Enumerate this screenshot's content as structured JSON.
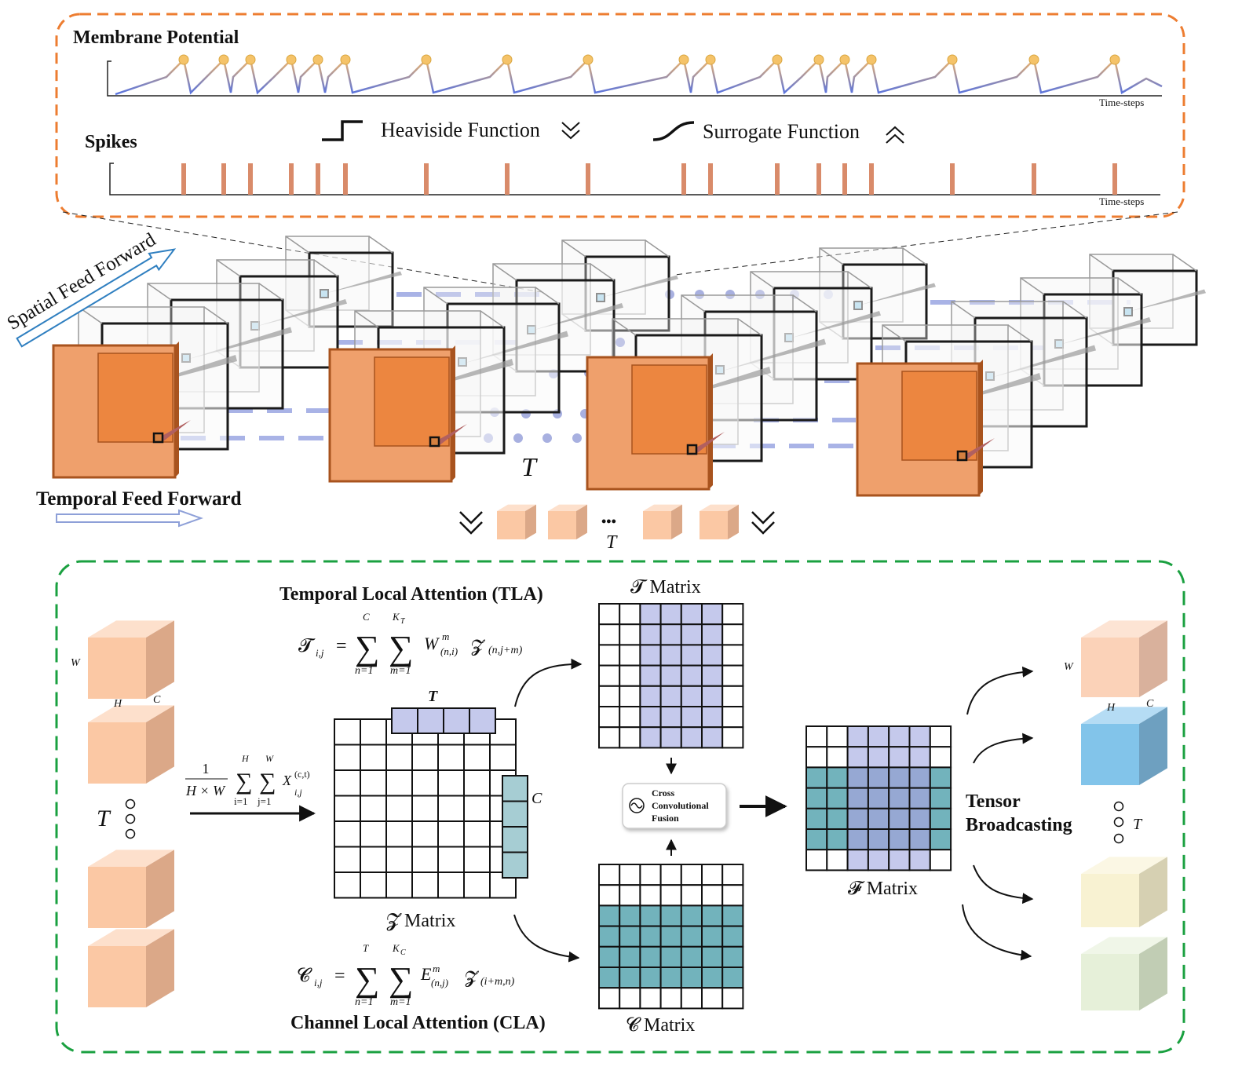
{
  "top_panel": {
    "membrane_title": "Membrane Potential",
    "membrane_axis": "Time-steps",
    "spikes_title": "Spikes",
    "spikes_axis": "Time-steps",
    "heaviside": "Heaviside Function",
    "surrogate": "Surrogate Function"
  },
  "middle": {
    "spatial": "Spatial Feed Forward",
    "temporal": "Temporal Feed Forward",
    "t_label": "T",
    "row_ellipsis": "•••",
    "row_t": "T"
  },
  "bottom": {
    "left_labels": {
      "w": "W",
      "h": "H",
      "c": "C",
      "t": "T"
    },
    "pooling": {
      "num": "1",
      "den": "H × W",
      "sigma": "∑",
      "s1_top": "H",
      "s1_bottom": "i=1",
      "s2_top": "W",
      "s2_bottom": "j=1",
      "term": "X",
      "term_sup": "(c,t)",
      "term_sub": "i,j"
    },
    "tla": {
      "title": "Temporal Local Attention (TLA)",
      "formula": {
        "lhs": "𝓣",
        "lhs_sub": "i,j",
        "eq": "=",
        "sigma": "∑",
        "s1_top": "C",
        "s1_bottom": "n=1",
        "s2_top": "K",
        "s2_top_sub": "T",
        "s2_bottom": "m=1",
        "w": "W",
        "w_sup": "m",
        "w_sub": "(n,i)",
        "z": "𝓩",
        "z_sub": "(n,j+m)"
      }
    },
    "cla": {
      "title": "Channel Local Attention (CLA)",
      "formula": {
        "lhs": "𝓒",
        "lhs_sub": "i,j",
        "eq": "=",
        "sigma": "∑",
        "s1_top": "T",
        "s1_bottom": "n=1",
        "s2_top": "K",
        "s2_top_sub": "C",
        "s2_bottom": "m=1",
        "e": "E",
        "e_sup": "m",
        "e_sub": "(n,j)",
        "z": "𝓩",
        "z_sub": "(i+m,n)"
      }
    },
    "z_matrix": {
      "label": "𝓩 Matrix",
      "t": "T",
      "c": "C"
    },
    "t_matrix_label": "𝓣 Matrix",
    "c_matrix_label": "𝓒 Matrix",
    "fusion": [
      "Cross",
      "Convolutional",
      "Fusion"
    ],
    "f_matrix_label": "𝓕 Matrix",
    "broadcast": [
      "Tensor",
      "Broadcasting"
    ],
    "right_labels": {
      "w": "W",
      "h": "H",
      "c": "C",
      "t": "T"
    }
  }
}
